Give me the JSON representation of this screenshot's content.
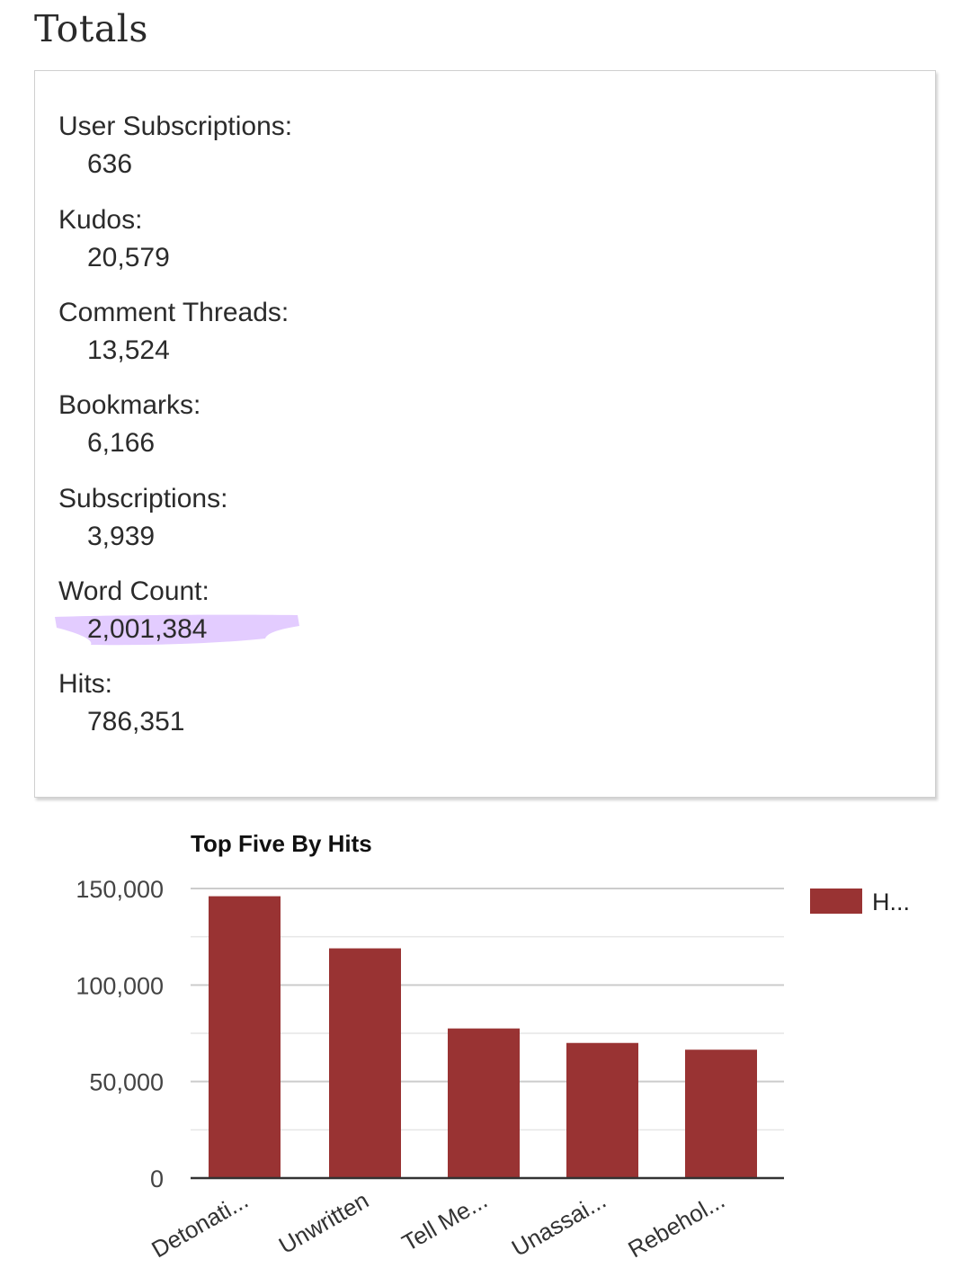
{
  "page": {
    "title": "Totals"
  },
  "totals": [
    {
      "label": "User Subscriptions:",
      "value": "636"
    },
    {
      "label": "Kudos:",
      "value": "20,579"
    },
    {
      "label": "Comment Threads:",
      "value": "13,524"
    },
    {
      "label": "Bookmarks:",
      "value": "6,166"
    },
    {
      "label": "Subscriptions:",
      "value": "3,939"
    },
    {
      "label": "Word Count:",
      "value": "2,001,384",
      "highlighted": true
    },
    {
      "label": "Hits:",
      "value": "786,351"
    }
  ],
  "colors": {
    "bar": "#993333",
    "highlight": "#e3ccff",
    "gridline": "#cccccc",
    "baseline": "#333333"
  },
  "chart_data": {
    "type": "bar",
    "title": "Top Five By Hits",
    "categories": [
      "Detonati...",
      "Unwritten",
      "Tell Me...",
      "Unassai...",
      "Rebehol..."
    ],
    "series": [
      {
        "name": "H...",
        "values": [
          146000,
          119000,
          77500,
          70000,
          66500
        ]
      }
    ],
    "ylim": [
      0,
      150000
    ],
    "y_ticks": [
      "0",
      "50,000",
      "100,000",
      "150,000"
    ],
    "grid": true,
    "legend": "right"
  }
}
